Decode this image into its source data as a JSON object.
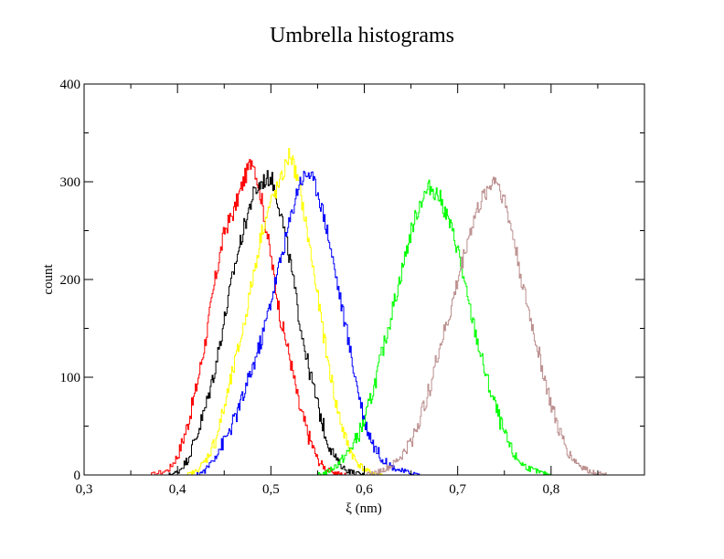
{
  "chart_data": {
    "type": "line",
    "title": "Umbrella histograms",
    "xlabel": "ξ (nm)",
    "ylabel": "count",
    "xlim": [
      0.3,
      0.9
    ],
    "ylim": [
      0,
      400
    ],
    "x_ticks": [
      0.3,
      0.4,
      0.5,
      0.6,
      0.7,
      0.8
    ],
    "x_tick_labels": [
      "0,3",
      "0,4",
      "0,5",
      "0,6",
      "0,7",
      "0,8"
    ],
    "y_ticks": [
      0,
      100,
      200,
      300,
      400
    ],
    "y_tick_labels": [
      "0",
      "100",
      "200",
      "300",
      "400"
    ],
    "grid": false,
    "legend": "none",
    "series": [
      {
        "color": "#ff0000",
        "x": [
          0.37,
          0.39,
          0.4,
          0.41,
          0.42,
          0.43,
          0.44,
          0.45,
          0.46,
          0.47,
          0.48,
          0.49,
          0.5,
          0.51,
          0.52,
          0.53,
          0.54,
          0.55,
          0.56,
          0.57,
          0.58
        ],
        "values": [
          0,
          5,
          20,
          50,
          90,
          140,
          200,
          250,
          270,
          300,
          325,
          280,
          220,
          160,
          120,
          70,
          40,
          15,
          5,
          2,
          0
        ]
      },
      {
        "color": "#000000",
        "x": [
          0.39,
          0.4,
          0.41,
          0.42,
          0.43,
          0.44,
          0.45,
          0.46,
          0.47,
          0.48,
          0.49,
          0.5,
          0.51,
          0.52,
          0.53,
          0.54,
          0.55,
          0.56,
          0.57,
          0.58,
          0.59,
          0.6
        ],
        "values": [
          0,
          3,
          15,
          40,
          70,
          110,
          160,
          210,
          250,
          285,
          300,
          305,
          270,
          220,
          160,
          110,
          70,
          35,
          15,
          5,
          2,
          0
        ]
      },
      {
        "color": "#ffff00",
        "x": [
          0.41,
          0.42,
          0.43,
          0.44,
          0.45,
          0.46,
          0.47,
          0.48,
          0.49,
          0.5,
          0.51,
          0.52,
          0.53,
          0.54,
          0.55,
          0.56,
          0.57,
          0.58,
          0.59,
          0.6,
          0.61,
          0.62
        ],
        "values": [
          0,
          4,
          15,
          35,
          70,
          110,
          150,
          200,
          250,
          280,
          300,
          330,
          295,
          240,
          180,
          120,
          70,
          35,
          15,
          5,
          2,
          0
        ]
      },
      {
        "color": "#0000ff",
        "x": [
          0.42,
          0.43,
          0.44,
          0.45,
          0.46,
          0.47,
          0.48,
          0.49,
          0.5,
          0.51,
          0.52,
          0.53,
          0.54,
          0.55,
          0.56,
          0.57,
          0.58,
          0.59,
          0.6,
          0.61,
          0.62,
          0.63,
          0.64,
          0.65,
          0.66
        ],
        "values": [
          0,
          5,
          20,
          35,
          55,
          80,
          110,
          140,
          180,
          220,
          260,
          300,
          310,
          290,
          250,
          200,
          150,
          100,
          55,
          30,
          15,
          8,
          4,
          2,
          0
        ]
      },
      {
        "color": "#00ff00",
        "x": [
          0.55,
          0.56,
          0.57,
          0.58,
          0.59,
          0.6,
          0.61,
          0.62,
          0.63,
          0.64,
          0.65,
          0.66,
          0.67,
          0.68,
          0.69,
          0.7,
          0.71,
          0.72,
          0.73,
          0.74,
          0.75,
          0.76,
          0.77,
          0.78,
          0.79,
          0.8
        ],
        "values": [
          0,
          3,
          10,
          20,
          35,
          55,
          90,
          130,
          170,
          210,
          250,
          280,
          295,
          285,
          260,
          230,
          180,
          140,
          100,
          70,
          40,
          20,
          10,
          5,
          2,
          0
        ]
      },
      {
        "color": "#bc8f8f",
        "x": [
          0.6,
          0.61,
          0.62,
          0.63,
          0.64,
          0.65,
          0.66,
          0.67,
          0.68,
          0.69,
          0.7,
          0.71,
          0.72,
          0.73,
          0.74,
          0.75,
          0.76,
          0.77,
          0.78,
          0.79,
          0.8,
          0.81,
          0.82,
          0.83,
          0.84,
          0.85,
          0.86
        ],
        "values": [
          0,
          2,
          5,
          10,
          20,
          35,
          60,
          90,
          130,
          160,
          200,
          240,
          270,
          290,
          305,
          280,
          240,
          190,
          150,
          110,
          70,
          40,
          20,
          10,
          4,
          2,
          0
        ]
      }
    ]
  }
}
